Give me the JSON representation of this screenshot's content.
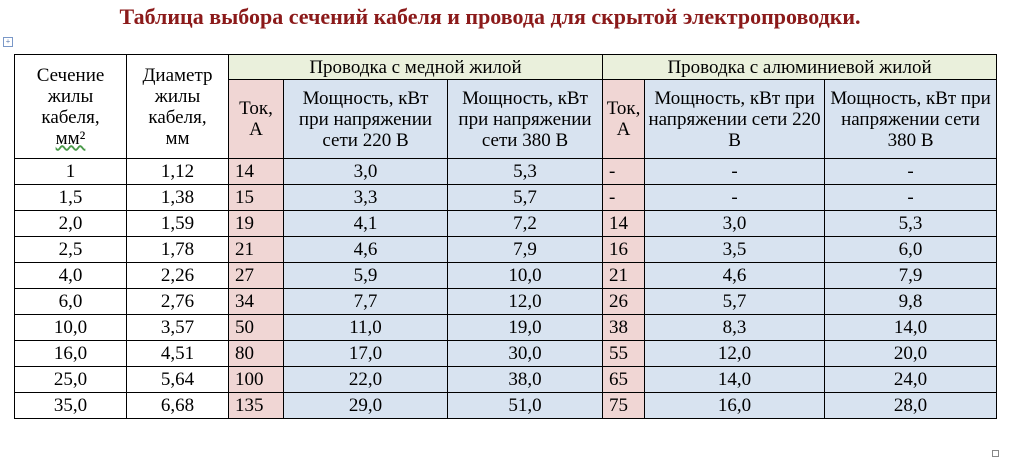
{
  "title": "Таблица выбора сечений кабеля и провода для скрытой электропроводки.",
  "headers": {
    "section_l1": "Сечение",
    "section_l2": "жилы",
    "section_l3": "кабеля,",
    "section_unit": "мм²",
    "diameter_l1": "Диаметр",
    "diameter_l2": "жилы",
    "diameter_l3": "кабеля,",
    "diameter_unit": "мм",
    "copper_group": "Проводка с медной жилой",
    "aluminum_group": "Проводка с алюминиевой жилой",
    "current": "Ток, А",
    "power_220": "Мощность, кВт при напряжении сети 220 В",
    "power_380": "Мощность, кВт при напряжении сети 380 В"
  },
  "rows": [
    {
      "section": "1",
      "diameter": "1,12",
      "cu_current": "14",
      "cu_p220": "3,0",
      "cu_p380": "5,3",
      "al_current": "-",
      "al_p220": "-",
      "al_p380": "-"
    },
    {
      "section": "1,5",
      "diameter": "1,38",
      "cu_current": "15",
      "cu_p220": "3,3",
      "cu_p380": "5,7",
      "al_current": "-",
      "al_p220": "-",
      "al_p380": "-"
    },
    {
      "section": "2,0",
      "diameter": "1,59",
      "cu_current": "19",
      "cu_p220": "4,1",
      "cu_p380": "7,2",
      "al_current": "14",
      "al_p220": "3,0",
      "al_p380": "5,3"
    },
    {
      "section": "2,5",
      "diameter": "1,78",
      "cu_current": "21",
      "cu_p220": "4,6",
      "cu_p380": "7,9",
      "al_current": "16",
      "al_p220": "3,5",
      "al_p380": "6,0"
    },
    {
      "section": "4,0",
      "diameter": "2,26",
      "cu_current": "27",
      "cu_p220": "5,9",
      "cu_p380": "10,0",
      "al_current": "21",
      "al_p220": "4,6",
      "al_p380": "7,9"
    },
    {
      "section": "6,0",
      "diameter": "2,76",
      "cu_current": "34",
      "cu_p220": "7,7",
      "cu_p380": "12,0",
      "al_current": "26",
      "al_p220": "5,7",
      "al_p380": "9,8"
    },
    {
      "section": "10,0",
      "diameter": "3,57",
      "cu_current": "50",
      "cu_p220": "11,0",
      "cu_p380": "19,0",
      "al_current": "38",
      "al_p220": "8,3",
      "al_p380": "14,0"
    },
    {
      "section": "16,0",
      "diameter": "4,51",
      "cu_current": "80",
      "cu_p220": "17,0",
      "cu_p380": "30,0",
      "al_current": "55",
      "al_p220": "12,0",
      "al_p380": "20,0"
    },
    {
      "section": "25,0",
      "diameter": "5,64",
      "cu_current": "100",
      "cu_p220": "22,0",
      "cu_p380": "38,0",
      "al_current": "65",
      "al_p220": "14,0",
      "al_p380": "24,0"
    },
    {
      "section": "35,0",
      "diameter": "6,68",
      "cu_current": "135",
      "cu_p220": "29,0",
      "cu_p380": "51,0",
      "al_current": "75",
      "al_p220": "16,0",
      "al_p380": "28,0"
    }
  ]
}
